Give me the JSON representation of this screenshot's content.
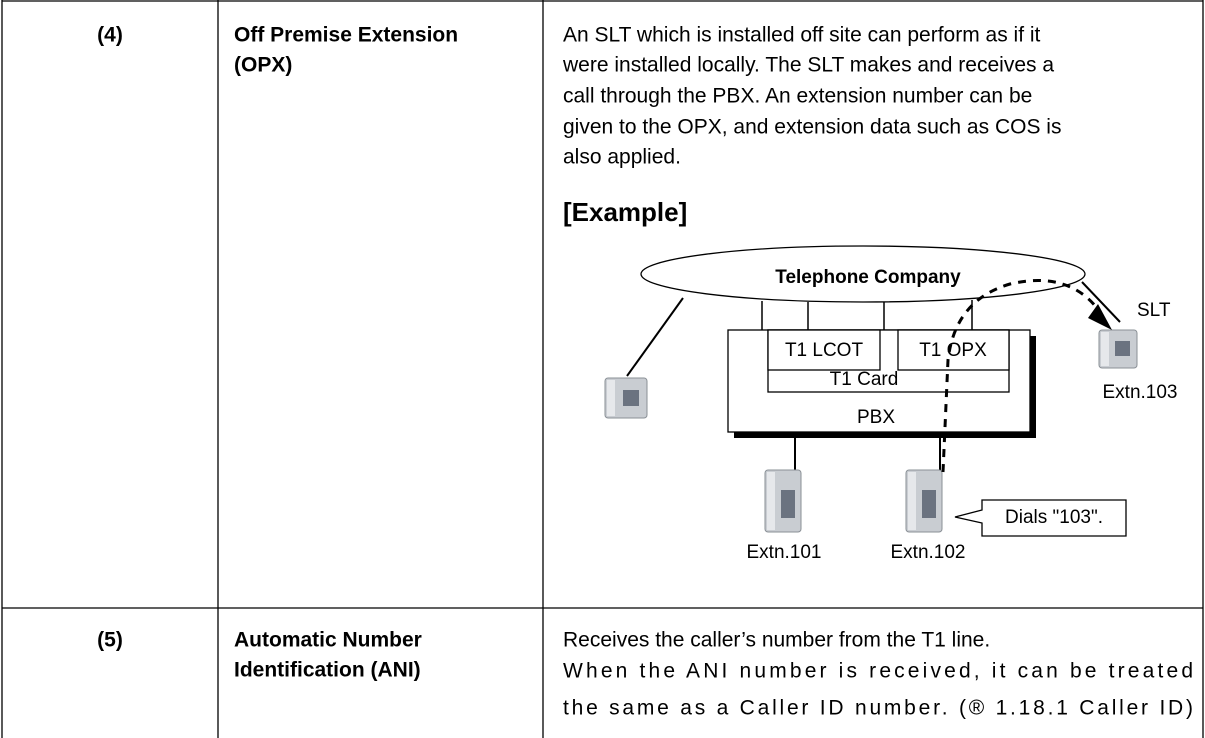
{
  "table": {
    "rows": [
      {
        "number": "(4)",
        "feature": [
          "Off Premise Extension",
          "(OPX)"
        ],
        "description": [
          "An SLT which is installed off site can perform as if it",
          "were installed locally. The SLT makes and receives a",
          "call through the PBX. An extension number can be",
          "given to the OPX, and extension data such as COS is",
          "also applied."
        ],
        "example": {
          "heading": "[Example]",
          "company": "Telephone Company",
          "lcot": "T1 LCOT",
          "opx": "T1 OPX",
          "card": "T1 Card",
          "pbx": "PBX",
          "slt": "SLT",
          "extn103": "Extn.103",
          "extn101": "Extn.101",
          "extn102": "Extn.102",
          "callout": "Dials \"103\"."
        }
      },
      {
        "number": "(5)",
        "feature": [
          "Automatic Number",
          "Identification (ANI)"
        ],
        "description": [
          "Receives the caller’s number from the T1 line.",
          "When the ANI number is received, it can be treated",
          "the same as a Caller ID number. (® 1.18.1  Caller ID)"
        ]
      }
    ]
  }
}
